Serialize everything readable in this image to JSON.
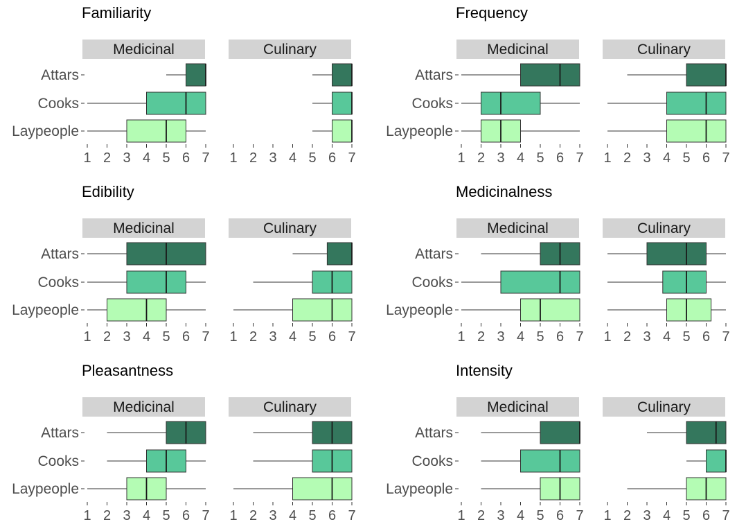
{
  "chart_data": {
    "type": "boxplot",
    "groups": [
      "Attars",
      "Cooks",
      "Laypeople"
    ],
    "facets": [
      "Medicinal",
      "Culinary"
    ],
    "x_ticks": [
      1,
      2,
      3,
      4,
      5,
      6,
      7
    ],
    "xlim": [
      1,
      7
    ],
    "colors": {
      "Attars": "#34775d",
      "Cooks": "#58c89a",
      "Laypeople": "#b4fcb4",
      "strip": "#d3d3d3",
      "line": "#333333"
    },
    "panels": [
      {
        "title": "Familiarity",
        "facets": [
          {
            "label": "Medicinal",
            "boxes": [
              {
                "group": "Attars",
                "min": 5,
                "q1": 6,
                "median": 7,
                "q3": 7,
                "max": 7
              },
              {
                "group": "Cooks",
                "min": 1,
                "q1": 4,
                "median": 6,
                "q3": 7,
                "max": 7
              },
              {
                "group": "Laypeople",
                "min": 1,
                "q1": 3,
                "median": 5,
                "q3": 6,
                "max": 7
              }
            ]
          },
          {
            "label": "Culinary",
            "boxes": [
              {
                "group": "Attars",
                "min": 5,
                "q1": 6,
                "median": 7,
                "q3": 7,
                "max": 7
              },
              {
                "group": "Cooks",
                "min": 5,
                "q1": 6,
                "median": 7,
                "q3": 7,
                "max": 7
              },
              {
                "group": "Laypeople",
                "min": 5,
                "q1": 6,
                "median": 7,
                "q3": 7,
                "max": 7
              }
            ]
          }
        ]
      },
      {
        "title": "Frequency",
        "facets": [
          {
            "label": "Medicinal",
            "boxes": [
              {
                "group": "Attars",
                "min": 1,
                "q1": 4,
                "median": 6,
                "q3": 7,
                "max": 7
              },
              {
                "group": "Cooks",
                "min": 1,
                "q1": 2,
                "median": 3,
                "q3": 5,
                "max": 7
              },
              {
                "group": "Laypeople",
                "min": 1,
                "q1": 2,
                "median": 3,
                "q3": 4,
                "max": 7
              }
            ]
          },
          {
            "label": "Culinary",
            "boxes": [
              {
                "group": "Attars",
                "min": 2,
                "q1": 5,
                "median": 7,
                "q3": 7,
                "max": 7
              },
              {
                "group": "Cooks",
                "min": 1,
                "q1": 4,
                "median": 6,
                "q3": 7,
                "max": 7
              },
              {
                "group": "Laypeople",
                "min": 1,
                "q1": 4,
                "median": 6,
                "q3": 7,
                "max": 7
              }
            ]
          }
        ]
      },
      {
        "title": "Edibility",
        "facets": [
          {
            "label": "Medicinal",
            "boxes": [
              {
                "group": "Attars",
                "min": 1,
                "q1": 3,
                "median": 5,
                "q3": 7,
                "max": 7
              },
              {
                "group": "Cooks",
                "min": 1,
                "q1": 3,
                "median": 5,
                "q3": 6,
                "max": 7
              },
              {
                "group": "Laypeople",
                "min": 1,
                "q1": 2,
                "median": 4,
                "q3": 5,
                "max": 7
              }
            ]
          },
          {
            "label": "Culinary",
            "boxes": [
              {
                "group": "Attars",
                "min": 4,
                "q1": 5.75,
                "median": 7,
                "q3": 7,
                "max": 7
              },
              {
                "group": "Cooks",
                "min": 2,
                "q1": 5,
                "median": 6,
                "q3": 7,
                "max": 7
              },
              {
                "group": "Laypeople",
                "min": 1,
                "q1": 4,
                "median": 6,
                "q3": 7,
                "max": 7
              }
            ]
          }
        ]
      },
      {
        "title": "Medicinalness",
        "facets": [
          {
            "label": "Medicinal",
            "boxes": [
              {
                "group": "Attars",
                "min": 2,
                "q1": 5,
                "median": 6,
                "q3": 7,
                "max": 7
              },
              {
                "group": "Cooks",
                "min": 1,
                "q1": 3,
                "median": 6,
                "q3": 7,
                "max": 7
              },
              {
                "group": "Laypeople",
                "min": 1,
                "q1": 4,
                "median": 5,
                "q3": 7,
                "max": 7
              }
            ]
          },
          {
            "label": "Culinary",
            "boxes": [
              {
                "group": "Attars",
                "min": 1,
                "q1": 3,
                "median": 5,
                "q3": 6,
                "max": 7
              },
              {
                "group": "Cooks",
                "min": 1,
                "q1": 3.8,
                "median": 5,
                "q3": 6,
                "max": 7
              },
              {
                "group": "Laypeople",
                "min": 1,
                "q1": 4,
                "median": 5,
                "q3": 6.25,
                "max": 7
              }
            ]
          }
        ]
      },
      {
        "title": "Pleasantness",
        "facets": [
          {
            "label": "Medicinal",
            "boxes": [
              {
                "group": "Attars",
                "min": 2,
                "q1": 5,
                "median": 6,
                "q3": 7,
                "max": 7
              },
              {
                "group": "Cooks",
                "min": 2,
                "q1": 4,
                "median": 5,
                "q3": 6,
                "max": 7
              },
              {
                "group": "Laypeople",
                "min": 1,
                "q1": 3,
                "median": 4,
                "q3": 5,
                "max": 7
              }
            ]
          },
          {
            "label": "Culinary",
            "boxes": [
              {
                "group": "Attars",
                "min": 2,
                "q1": 5,
                "median": 6,
                "q3": 7,
                "max": 7
              },
              {
                "group": "Cooks",
                "min": 2,
                "q1": 5,
                "median": 6,
                "q3": 7,
                "max": 7
              },
              {
                "group": "Laypeople",
                "min": 1,
                "q1": 4,
                "median": 6,
                "q3": 7,
                "max": 7
              }
            ]
          }
        ]
      },
      {
        "title": "Intensity",
        "facets": [
          {
            "label": "Medicinal",
            "boxes": [
              {
                "group": "Attars",
                "min": 2,
                "q1": 5,
                "median": 7,
                "q3": 7,
                "max": 7
              },
              {
                "group": "Cooks",
                "min": 2,
                "q1": 4,
                "median": 6,
                "q3": 7,
                "max": 7
              },
              {
                "group": "Laypeople",
                "min": 2,
                "q1": 5,
                "median": 6,
                "q3": 7,
                "max": 7
              }
            ]
          },
          {
            "label": "Culinary",
            "boxes": [
              {
                "group": "Attars",
                "min": 3,
                "q1": 5,
                "median": 6.5,
                "q3": 7,
                "max": 7
              },
              {
                "group": "Cooks",
                "min": 5,
                "q1": 6,
                "median": 7,
                "q3": 7,
                "max": 7
              },
              {
                "group": "Laypeople",
                "min": 2,
                "q1": 5,
                "median": 6,
                "q3": 7,
                "max": 7
              }
            ]
          }
        ]
      }
    ]
  }
}
